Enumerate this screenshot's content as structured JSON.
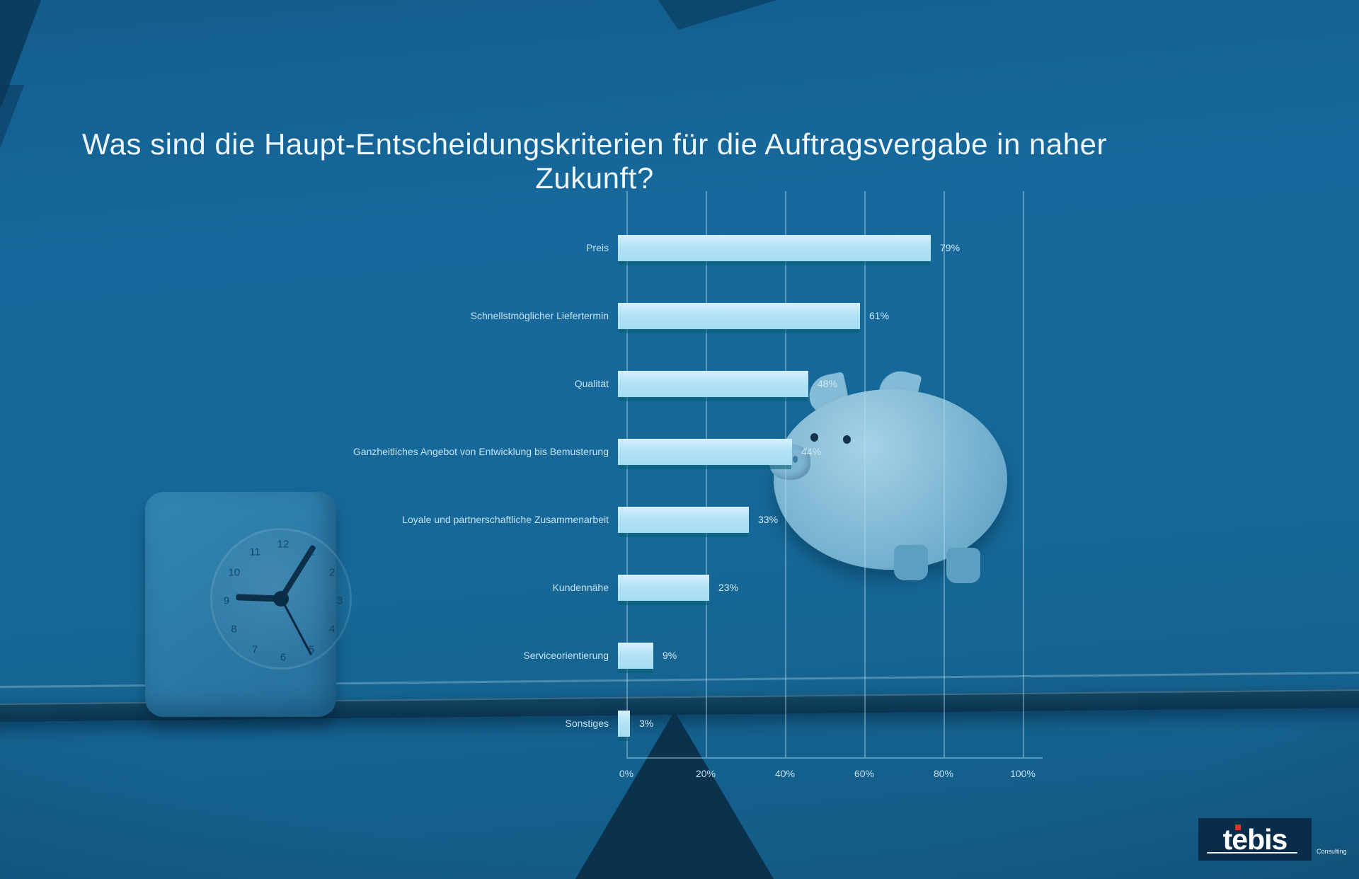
{
  "title": "Was sind die Haupt-Entscheidungskriterien für die Auftragsvergabe in naher Zukunft?",
  "chart_data": {
    "type": "bar",
    "orientation": "horizontal",
    "categories": [
      "Preis",
      "Schnellstmöglicher Liefertermin",
      "Qualität",
      "Ganzheitliches Angebot von Entwicklung bis Bemusterung",
      "Loyale und partnerschaftliche Zusammenarbeit",
      "Kundennähe",
      "Serviceorientierung",
      "Sonstiges"
    ],
    "values": [
      79,
      61,
      48,
      44,
      33,
      23,
      9,
      3
    ],
    "value_labels": [
      "79%",
      "61%",
      "48%",
      "44%",
      "33%",
      "23%",
      "9%",
      "3%"
    ],
    "x_ticks": [
      "0%",
      "20%",
      "40%",
      "60%",
      "80%",
      "100%"
    ],
    "xlim": [
      0,
      100
    ],
    "grid": "vertical gridlines at 20% steps",
    "legend": "none",
    "bar_color": "#b3e3f6",
    "background_color": "#16689b",
    "label_color": "#c3e2f2"
  },
  "decor": {
    "clock_numerals": [
      "12",
      "1",
      "2",
      "3",
      "4",
      "5",
      "6",
      "7",
      "8",
      "9",
      "10",
      "11"
    ]
  },
  "logo": {
    "brand": "tebis",
    "sub": "Consulting"
  }
}
